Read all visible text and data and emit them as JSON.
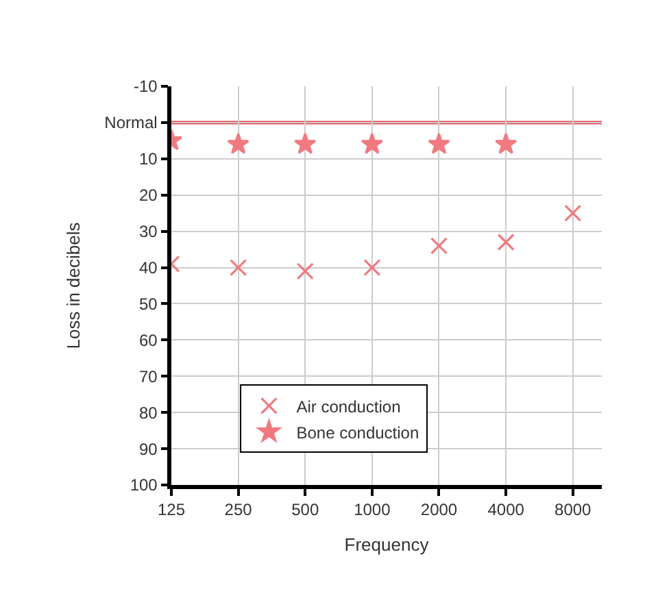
{
  "chart_data": {
    "type": "scatter",
    "xlabel": "Frequency",
    "ylabel": "Loss in decibels",
    "x": [
      125,
      250,
      500,
      1000,
      2000,
      4000,
      8000
    ],
    "series": [
      {
        "name": "Air conduction",
        "color": "#f07a80",
        "marker": "cross",
        "values": [
          39,
          40,
          41,
          40,
          34,
          33,
          25
        ]
      },
      {
        "name": "Bone conduction",
        "color": "#f07a80",
        "marker": "star",
        "values": [
          5,
          6,
          6,
          6,
          6,
          6,
          null
        ]
      }
    ],
    "log": "x",
    "xlim": [
      125,
      10800
    ],
    "xticks": [
      125,
      250,
      500,
      1000,
      2000,
      4000,
      8000
    ],
    "ylim": [
      100,
      -10
    ],
    "yticks": [
      -10,
      {
        "value": 0,
        "label": "Normal"
      },
      10,
      20,
      30,
      40,
      50,
      60,
      70,
      80,
      90,
      100
    ],
    "ref_lines": [
      {
        "axis": "y",
        "value": 0,
        "color": "#e8474f",
        "line_style": "solid"
      }
    ],
    "grid": true,
    "legend": "bottom left"
  }
}
